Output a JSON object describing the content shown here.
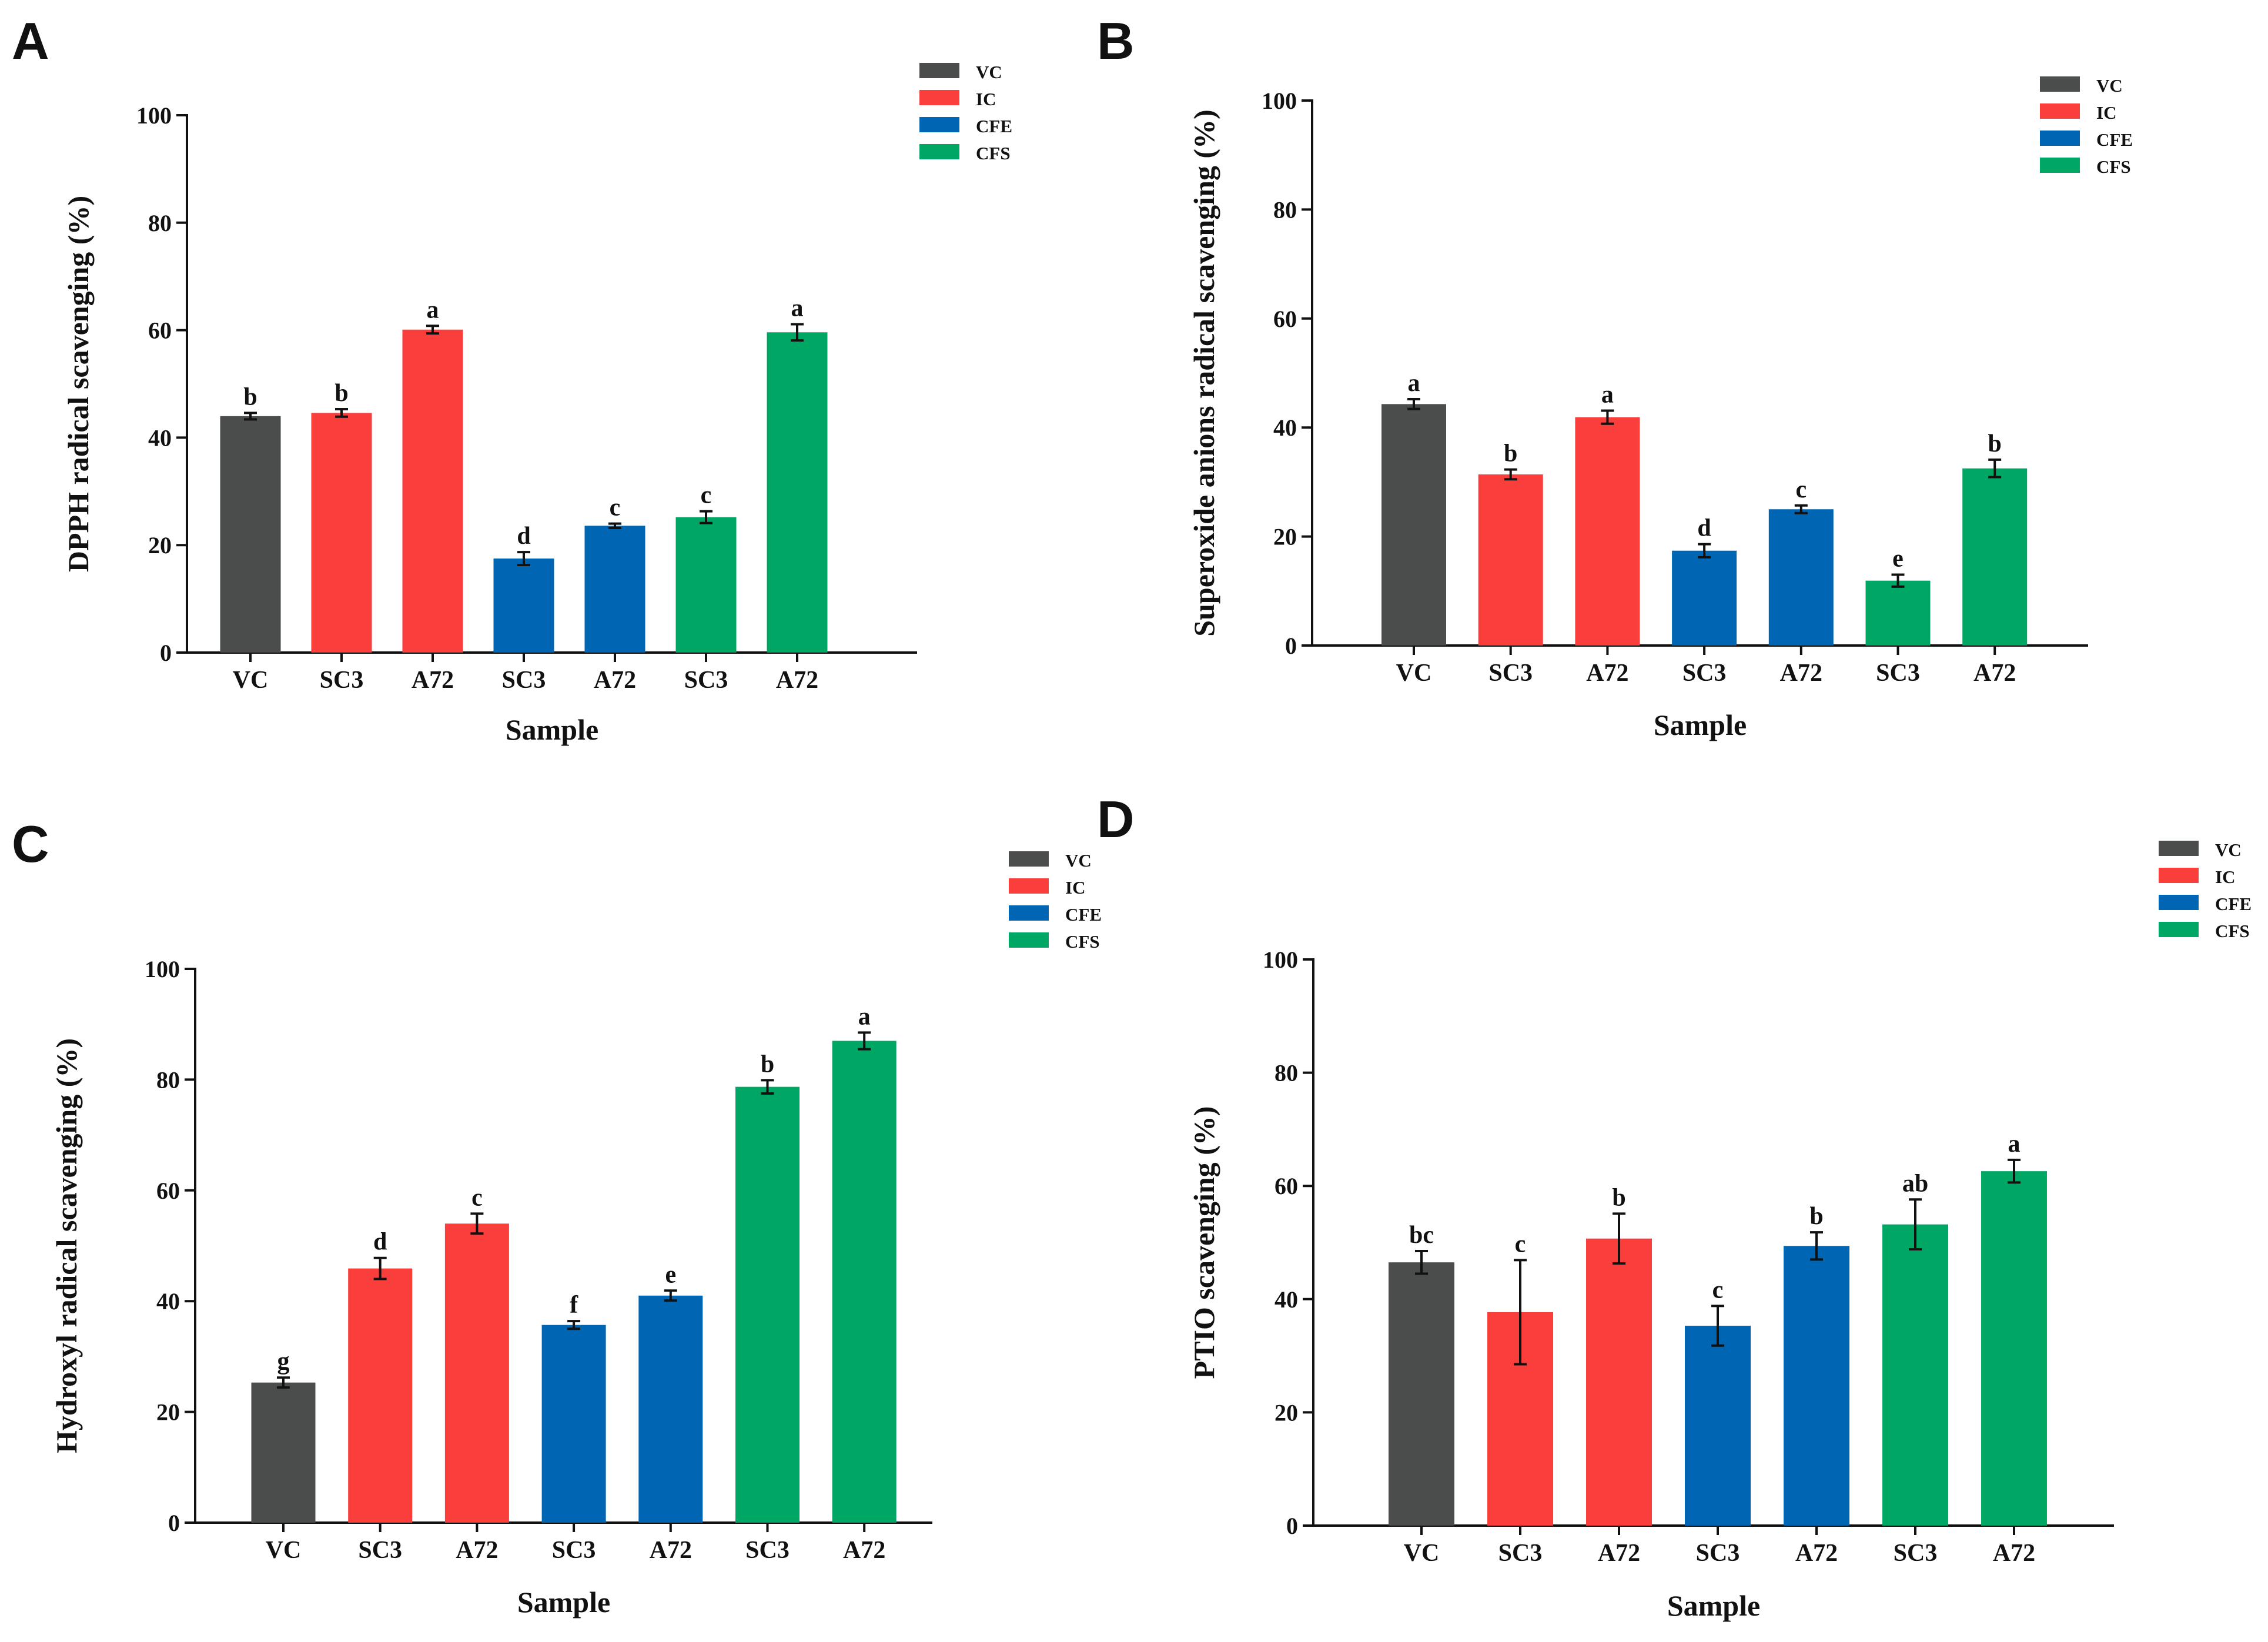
{
  "colors": {
    "VC": "#4b4d4c",
    "IC": "#fa3e3c",
    "CFE": "#0066b3",
    "CFS": "#00a664"
  },
  "chart_data": [
    {
      "panel": "A",
      "type": "bar",
      "title": "",
      "xlabel": "Sample",
      "ylabel": "DPPH radical scavenging (%)",
      "ylim": [
        0,
        100
      ],
      "yticks": [
        0,
        20,
        40,
        60,
        80,
        100
      ],
      "legend": [
        "VC",
        "IC",
        "CFE",
        "CFS"
      ],
      "categories": [
        "VC",
        "SC3",
        "A72",
        "SC3",
        "A72",
        "SC3",
        "A72"
      ],
      "groups": [
        "VC",
        "IC",
        "IC",
        "CFE",
        "CFE",
        "CFS",
        "CFS"
      ],
      "values": [
        44,
        44.6,
        60.1,
        17.5,
        23.6,
        25.2,
        59.6
      ],
      "errors": [
        0.6,
        0.7,
        0.7,
        1.2,
        0.4,
        1.1,
        1.5
      ],
      "letters": [
        "b",
        "b",
        "a",
        "d",
        "c",
        "c",
        "a"
      ]
    },
    {
      "panel": "B",
      "type": "bar",
      "title": "",
      "xlabel": "Sample",
      "ylabel": "Superoxide anions radical scavenging (%)",
      "ylim": [
        0,
        100
      ],
      "yticks": [
        0,
        20,
        40,
        60,
        80,
        100
      ],
      "legend": [
        "VC",
        "IC",
        "CFE",
        "CFS"
      ],
      "categories": [
        "VC",
        "SC3",
        "A72",
        "SC3",
        "A72",
        "SC3",
        "A72"
      ],
      "groups": [
        "VC",
        "IC",
        "IC",
        "CFE",
        "CFE",
        "CFS",
        "CFS"
      ],
      "values": [
        44.3,
        31.4,
        41.9,
        17.4,
        25,
        11.9,
        32.5
      ],
      "errors": [
        0.9,
        0.9,
        1.2,
        1.2,
        0.7,
        1.1,
        1.6
      ],
      "letters": [
        "a",
        "b",
        "a",
        "d",
        "c",
        "e",
        "b"
      ]
    },
    {
      "panel": "C",
      "type": "bar",
      "title": "",
      "xlabel": "Sample",
      "ylabel": "Hydroxyl radical scavenging (%)",
      "ylim": [
        0,
        100
      ],
      "yticks": [
        0,
        20,
        40,
        60,
        80,
        100
      ],
      "legend": [
        "VC",
        "IC",
        "CFE",
        "CFS"
      ],
      "categories": [
        "VC",
        "SC3",
        "A72",
        "SC3",
        "A72",
        "SC3",
        "A72"
      ],
      "groups": [
        "VC",
        "IC",
        "IC",
        "CFE",
        "CFE",
        "CFS",
        "CFS"
      ],
      "values": [
        25.3,
        45.9,
        54,
        35.7,
        41,
        78.7,
        87
      ],
      "errors": [
        0.9,
        1.9,
        1.8,
        0.7,
        0.9,
        1.2,
        1.5
      ],
      "letters": [
        "g",
        "d",
        "c",
        "f",
        "e",
        "b",
        "a"
      ]
    },
    {
      "panel": "D",
      "type": "bar",
      "title": "",
      "xlabel": "Sample",
      "ylabel": "PTIO scavenging (%)",
      "ylim": [
        0,
        100
      ],
      "yticks": [
        0,
        20,
        40,
        60,
        80,
        100
      ],
      "legend": [
        "VC",
        "IC",
        "CFE",
        "CFS"
      ],
      "categories": [
        "VC",
        "SC3",
        "A72",
        "SC3",
        "A72",
        "SC3",
        "A72"
      ],
      "groups": [
        "VC",
        "IC",
        "IC",
        "CFE",
        "CFE",
        "CFS",
        "CFS"
      ],
      "values": [
        46.5,
        37.7,
        50.7,
        35.3,
        49.4,
        53.2,
        62.6
      ],
      "errors": [
        2,
        9.2,
        4.4,
        3.5,
        2.4,
        4.4,
        2
      ],
      "letters": [
        "bc",
        "c",
        "b",
        "c",
        "b",
        "ab",
        "a"
      ]
    }
  ]
}
